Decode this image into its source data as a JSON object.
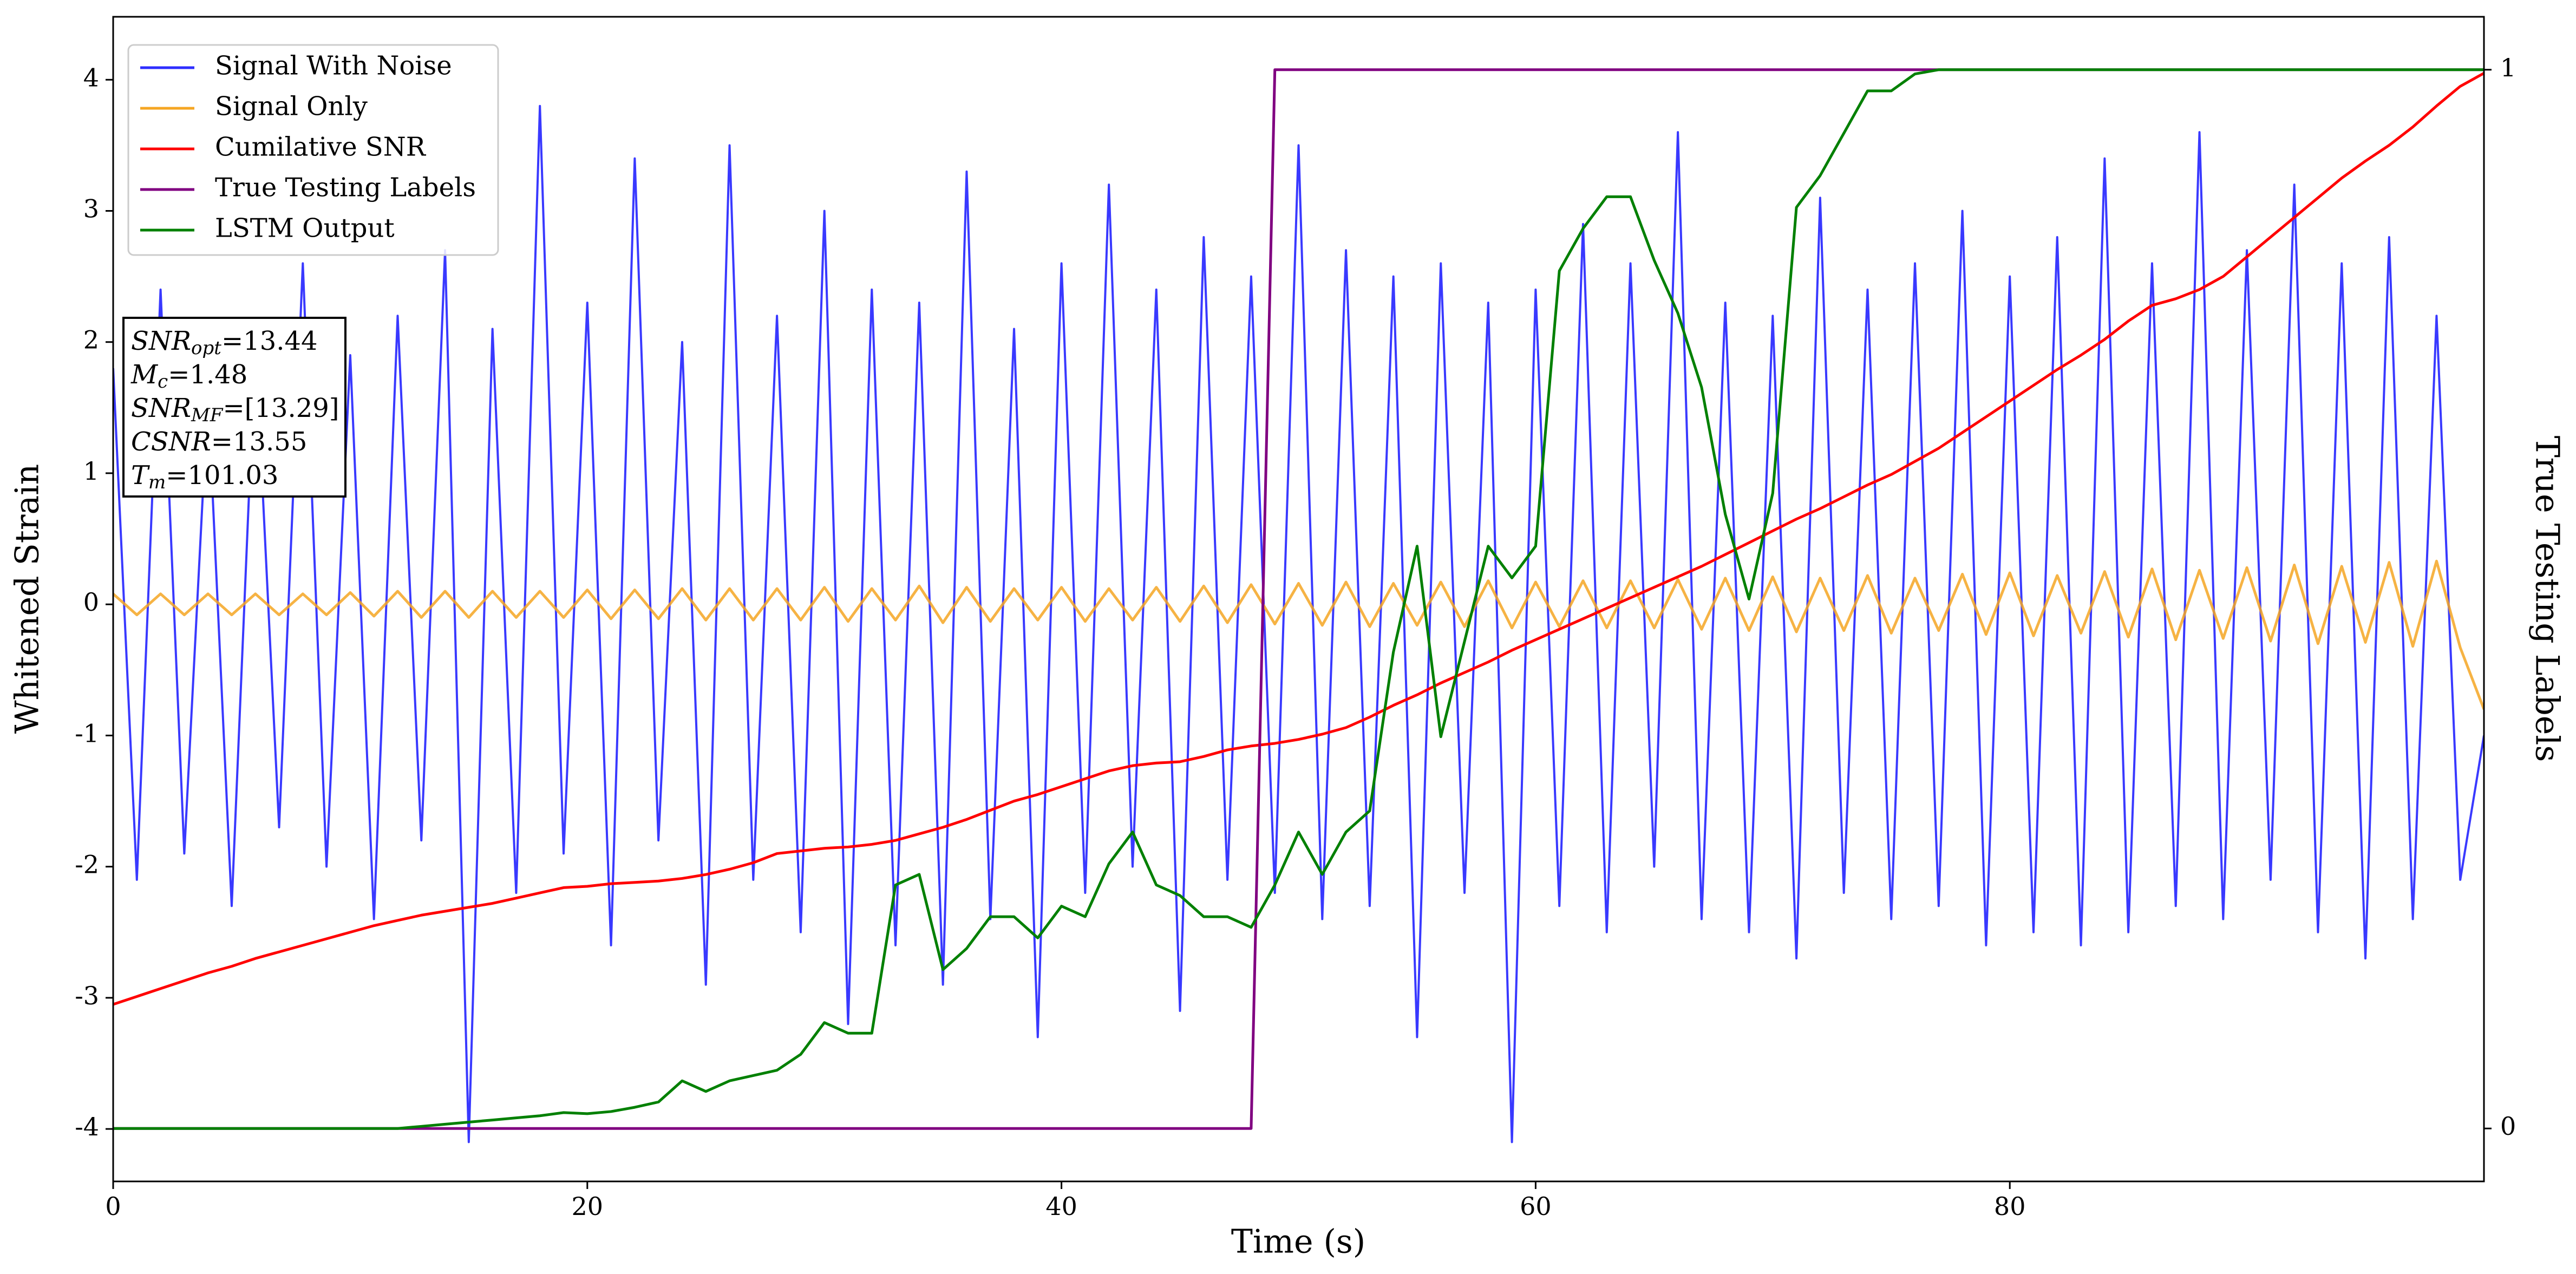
{
  "chart_data": {
    "type": "line",
    "xlabel": "Time (s)",
    "ylabel": "Whitened Strain",
    "y2label": "True Testing Labels",
    "xlim": [
      0,
      100
    ],
    "ylim": [
      -4.4,
      4.48
    ],
    "y2lim": [
      -0.05,
      1.05
    ],
    "xticks": [
      0,
      20,
      40,
      60,
      80
    ],
    "yticks": [
      -4,
      -3,
      -2,
      -1,
      0,
      1,
      2,
      3,
      4
    ],
    "y2ticks": [
      0,
      1
    ],
    "legend": "upper left",
    "x": [
      0,
      1,
      2,
      3,
      4,
      5,
      6,
      7,
      8,
      9,
      10,
      11,
      12,
      13,
      14,
      15,
      16,
      17,
      18,
      19,
      20,
      21,
      22,
      23,
      24,
      25,
      26,
      27,
      28,
      29,
      30,
      31,
      32,
      33,
      34,
      35,
      36,
      37,
      38,
      39,
      40,
      41,
      42,
      43,
      44,
      45,
      46,
      47,
      48,
      49,
      50,
      51,
      52,
      53,
      54,
      55,
      56,
      57,
      58,
      59,
      60,
      61,
      62,
      63,
      64,
      65,
      66,
      67,
      68,
      69,
      70,
      71,
      72,
      73,
      74,
      75,
      76,
      77,
      78,
      79,
      80,
      81,
      82,
      83,
      84,
      85,
      86,
      87,
      88,
      89,
      90,
      91,
      92,
      93,
      94,
      95,
      96,
      97,
      98,
      99,
      100
    ],
    "series": [
      {
        "name": "Signal With Noise",
        "color": "#2e2eff",
        "values": [
          1.8,
          -2.1,
          2.4,
          -1.9,
          1.6,
          -2.3,
          2.0,
          -1.7,
          2.6,
          -2.0,
          1.9,
          -2.4,
          2.2,
          -1.8,
          2.7,
          -4.1,
          2.1,
          -2.2,
          3.8,
          -1.9,
          2.3,
          -2.6,
          3.4,
          -1.8,
          2.0,
          -2.9,
          3.5,
          -2.1,
          2.2,
          -2.5,
          3.0,
          -3.2,
          2.4,
          -2.6,
          2.3,
          -2.9,
          3.3,
          -2.4,
          2.1,
          -3.3,
          2.6,
          -2.2,
          3.2,
          -2.0,
          2.4,
          -3.1,
          2.8,
          -2.1,
          2.5,
          -2.2,
          3.5,
          -2.4,
          2.7,
          -2.3,
          2.5,
          -3.3,
          2.6,
          -2.2,
          2.3,
          -4.1,
          2.4,
          -2.3,
          2.9,
          -2.5,
          2.6,
          -2.0,
          3.6,
          -2.4,
          2.3,
          -2.5,
          2.2,
          -2.7,
          3.1,
          -2.2,
          2.4,
          -2.4,
          2.6,
          -2.3,
          3.0,
          -2.6,
          2.5,
          -2.5,
          2.8,
          -2.6,
          3.4,
          -2.5,
          2.6,
          -2.3,
          3.6,
          -2.4,
          2.7,
          -2.1,
          3.2,
          -2.5,
          2.6,
          -2.7,
          2.8,
          -2.4,
          2.2,
          -2.1,
          -1.0
        ]
      },
      {
        "name": "Signal Only",
        "color": "#f5a623",
        "values": [
          0.08,
          -0.08,
          0.08,
          -0.08,
          0.08,
          -0.08,
          0.08,
          -0.08,
          0.08,
          -0.08,
          0.09,
          -0.09,
          0.1,
          -0.1,
          0.1,
          -0.1,
          0.1,
          -0.1,
          0.1,
          -0.1,
          0.11,
          -0.11,
          0.11,
          -0.11,
          0.12,
          -0.12,
          0.12,
          -0.12,
          0.12,
          -0.12,
          0.13,
          -0.13,
          0.12,
          -0.12,
          0.14,
          -0.14,
          0.13,
          -0.13,
          0.12,
          -0.12,
          0.13,
          -0.13,
          0.12,
          -0.12,
          0.13,
          -0.13,
          0.14,
          -0.14,
          0.15,
          -0.15,
          0.16,
          -0.16,
          0.17,
          -0.17,
          0.16,
          -0.16,
          0.17,
          -0.17,
          0.18,
          -0.18,
          0.17,
          -0.17,
          0.18,
          -0.18,
          0.18,
          -0.18,
          0.19,
          -0.19,
          0.2,
          -0.2,
          0.21,
          -0.21,
          0.2,
          -0.2,
          0.22,
          -0.22,
          0.2,
          -0.2,
          0.23,
          -0.23,
          0.24,
          -0.24,
          0.22,
          -0.22,
          0.25,
          -0.25,
          0.27,
          -0.27,
          0.26,
          -0.26,
          0.28,
          -0.28,
          0.3,
          -0.3,
          0.29,
          -0.29,
          0.32,
          -0.32,
          0.33,
          -0.33,
          -0.8
        ]
      },
      {
        "name": "Cumilative SNR",
        "color": "#ff0000",
        "values": [
          -3.05,
          -2.99,
          -2.93,
          -2.87,
          -2.81,
          -2.76,
          -2.7,
          -2.65,
          -2.6,
          -2.55,
          -2.5,
          -2.45,
          -2.41,
          -2.37,
          -2.34,
          -2.31,
          -2.28,
          -2.24,
          -2.2,
          -2.16,
          -2.15,
          -2.13,
          -2.12,
          -2.11,
          -2.09,
          -2.06,
          -2.02,
          -1.97,
          -1.9,
          -1.88,
          -1.86,
          -1.85,
          -1.83,
          -1.8,
          -1.75,
          -1.7,
          -1.64,
          -1.57,
          -1.5,
          -1.45,
          -1.39,
          -1.33,
          -1.27,
          -1.23,
          -1.21,
          -1.2,
          -1.16,
          -1.11,
          -1.08,
          -1.06,
          -1.03,
          -0.99,
          -0.94,
          -0.86,
          -0.77,
          -0.69,
          -0.6,
          -0.52,
          -0.44,
          -0.35,
          -0.27,
          -0.19,
          -0.11,
          -0.03,
          0.05,
          0.13,
          0.21,
          0.29,
          0.38,
          0.47,
          0.56,
          0.65,
          0.73,
          0.82,
          0.91,
          0.99,
          1.09,
          1.19,
          1.31,
          1.43,
          1.55,
          1.67,
          1.79,
          1.9,
          2.02,
          2.16,
          2.28,
          2.33,
          2.4,
          2.5,
          2.65,
          2.8,
          2.95,
          3.1,
          3.25,
          3.38,
          3.5,
          3.64,
          3.8,
          3.95,
          4.05
        ]
      },
      {
        "name": "True Testing Labels",
        "color": "#800080",
        "axis": "y2",
        "values": [
          0,
          0,
          0,
          0,
          0,
          0,
          0,
          0,
          0,
          0,
          0,
          0,
          0,
          0,
          0,
          0,
          0,
          0,
          0,
          0,
          0,
          0,
          0,
          0,
          0,
          0,
          0,
          0,
          0,
          0,
          0,
          0,
          0,
          0,
          0,
          0,
          0,
          0,
          0,
          0,
          0,
          0,
          0,
          0,
          0,
          0,
          0,
          0,
          0,
          1,
          1,
          1,
          1,
          1,
          1,
          1,
          1,
          1,
          1,
          1,
          1,
          1,
          1,
          1,
          1,
          1,
          1,
          1,
          1,
          1,
          1,
          1,
          1,
          1,
          1,
          1,
          1,
          1,
          1,
          1,
          1,
          1,
          1,
          1,
          1,
          1,
          1,
          1,
          1,
          1,
          1,
          1,
          1,
          1,
          1,
          1,
          1,
          1,
          1,
          1,
          1
        ]
      },
      {
        "name": "LSTM Output",
        "color": "#008000",
        "axis": "y2",
        "values": [
          0,
          0,
          0,
          0,
          0,
          0,
          0,
          0,
          0,
          0,
          0,
          0,
          0,
          0.002,
          0.004,
          0.006,
          0.008,
          0.01,
          0.012,
          0.015,
          0.014,
          0.016,
          0.02,
          0.025,
          0.045,
          0.035,
          0.045,
          0.05,
          0.055,
          0.07,
          0.1,
          0.09,
          0.09,
          0.23,
          0.24,
          0.15,
          0.17,
          0.2,
          0.2,
          0.18,
          0.21,
          0.2,
          0.25,
          0.28,
          0.23,
          0.22,
          0.2,
          0.2,
          0.19,
          0.23,
          0.28,
          0.24,
          0.28,
          0.3,
          0.45,
          0.55,
          0.37,
          0.46,
          0.55,
          0.52,
          0.55,
          0.81,
          0.85,
          0.88,
          0.88,
          0.82,
          0.77,
          0.7,
          0.58,
          0.5,
          0.6,
          0.87,
          0.9,
          0.94,
          0.98,
          0.98,
          0.996,
          1,
          1,
          1,
          1,
          1,
          1,
          1,
          1,
          1,
          1,
          1,
          1,
          1,
          1,
          1,
          1,
          1,
          1,
          1,
          1,
          1,
          1,
          1,
          1
        ]
      }
    ],
    "annotation": [
      {
        "main": "SNR",
        "sub": "opt",
        "rest": "=13.44"
      },
      {
        "main": "M",
        "sub": "c",
        "rest": "=1.48"
      },
      {
        "main": "SNR",
        "sub": "MF",
        "rest": "=[13.29]"
      },
      {
        "main": "CSNR",
        "sub": "",
        "rest": "=13.55"
      },
      {
        "main": "T",
        "sub": "m",
        "rest": "=101.03"
      }
    ]
  }
}
